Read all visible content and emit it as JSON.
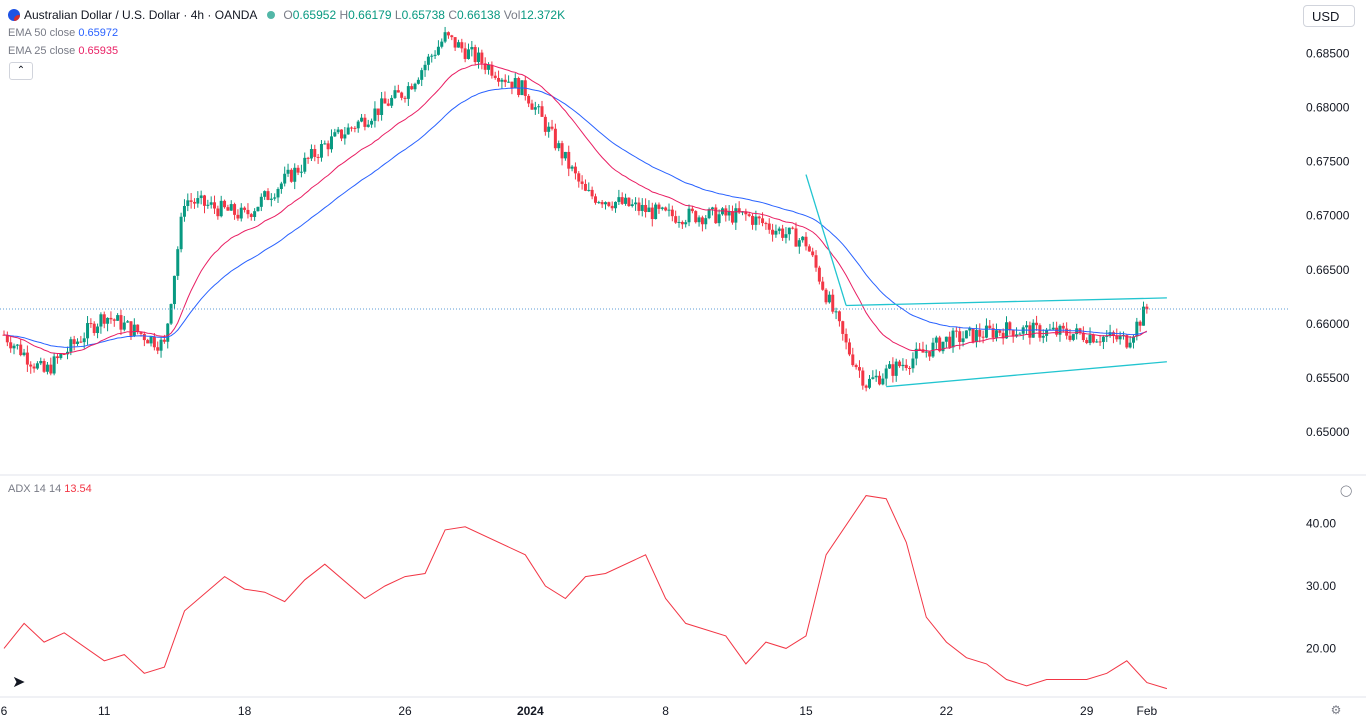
{
  "header": {
    "symbol": "Australian Dollar / U.S. Dollar · 4h · OANDA",
    "ohlc": {
      "o_label": "O",
      "o": "0.65952",
      "h_label": "H",
      "h": "0.66179",
      "l_label": "L",
      "l": "0.65738",
      "c_label": "C",
      "c": "0.66138",
      "vol_label": "Vol",
      "vol": "12.372K"
    },
    "currency": "USD",
    "collapse_icon": "chevron-up-icon"
  },
  "indicators": {
    "ema50": {
      "label": "EMA 50 close",
      "value": "0.65972",
      "color": "#2962ff"
    },
    "ema25": {
      "label": "EMA 25 close",
      "value": "0.65935",
      "color": "#e91e63"
    },
    "adx": {
      "label": "ADX 14 14",
      "value": "13.54",
      "color": "#f23645"
    }
  },
  "colors": {
    "up": "#089981",
    "down": "#f23645",
    "trendline": "#22c5d0",
    "pricing_line": "#5b9bd5"
  },
  "chart_data": [
    {
      "type": "candlestick",
      "title": "Australian Dollar / U.S. Dollar",
      "x_ticks": [
        "6",
        "11",
        "18",
        "26",
        "2024",
        "8",
        "15",
        "22",
        "29",
        "Feb"
      ],
      "y_ticks": [
        "0.68500",
        "0.68000",
        "0.67500",
        "0.67000",
        "0.66500",
        "0.66000",
        "0.65500",
        "0.65000"
      ],
      "ylim": [
        0.6465,
        0.689
      ],
      "last_price_line": 0.66138,
      "key_points": [
        {
          "x": "Dec 6",
          "price": 0.659
        },
        {
          "x": "Dec 8",
          "price": 0.6555
        },
        {
          "x": "Dec 11",
          "price": 0.6608
        },
        {
          "x": "Dec 14",
          "price": 0.658
        },
        {
          "x": "Dec 15",
          "price": 0.6715
        },
        {
          "x": "Dec 18",
          "price": 0.67
        },
        {
          "x": "Dec 22",
          "price": 0.6765
        },
        {
          "x": "Dec 26",
          "price": 0.6815
        },
        {
          "x": "Dec 28",
          "price": 0.6865
        },
        {
          "x": "Jan 1",
          "price": 0.6815
        },
        {
          "x": "Jan 4",
          "price": 0.672
        },
        {
          "x": "Jan 8",
          "price": 0.67
        },
        {
          "x": "Jan 12",
          "price": 0.67
        },
        {
          "x": "Jan 15",
          "price": 0.6675
        },
        {
          "x": "Jan 17",
          "price": 0.658
        },
        {
          "x": "Jan 18",
          "price": 0.6545
        },
        {
          "x": "Jan 19",
          "price": 0.6555
        },
        {
          "x": "Jan 22",
          "price": 0.6585
        },
        {
          "x": "Jan 25",
          "price": 0.6595
        },
        {
          "x": "Jan 29",
          "price": 0.659
        },
        {
          "x": "Jan 31",
          "price": 0.6585
        },
        {
          "x": "Feb 1",
          "price": 0.66138
        }
      ],
      "trendlines": [
        {
          "name": "channel-upper",
          "from": {
            "x": "Jan 17",
            "price": 0.6617
          },
          "to": {
            "x": "Feb 2",
            "price": 0.6624
          }
        },
        {
          "name": "channel-lower",
          "from": {
            "x": "Jan 19",
            "price": 0.6542
          },
          "to": {
            "x": "Feb 2",
            "price": 0.6565
          }
        },
        {
          "name": "falling-trendline",
          "from": {
            "x": "Jan 15",
            "price": 0.6738
          },
          "to": {
            "x": "Jan 17",
            "price": 0.6617
          }
        }
      ]
    },
    {
      "type": "line",
      "title": "ADX 14 14",
      "y_ticks": [
        "40.00",
        "30.00",
        "20.00"
      ],
      "ylim": [
        13,
        47
      ],
      "series": [
        {
          "values": [
            {
              "x": "Dec 6",
              "y": 20
            },
            {
              "x": "Dec 7",
              "y": 24
            },
            {
              "x": "Dec 8",
              "y": 21
            },
            {
              "x": "Dec 9",
              "y": 22.5
            },
            {
              "x": "Dec 11",
              "y": 18
            },
            {
              "x": "Dec 12",
              "y": 19
            },
            {
              "x": "Dec 13",
              "y": 16
            },
            {
              "x": "Dec 14",
              "y": 17
            },
            {
              "x": "Dec 15",
              "y": 26
            },
            {
              "x": "Dec 17",
              "y": 31.5
            },
            {
              "x": "Dec 18",
              "y": 29.5
            },
            {
              "x": "Dec 19",
              "y": 29
            },
            {
              "x": "Dec 20",
              "y": 27.5
            },
            {
              "x": "Dec 21",
              "y": 31
            },
            {
              "x": "Dec 22",
              "y": 33.5
            },
            {
              "x": "Dec 24",
              "y": 28
            },
            {
              "x": "Dec 25",
              "y": 30
            },
            {
              "x": "Dec 26",
              "y": 31.5
            },
            {
              "x": "Dec 27",
              "y": 32
            },
            {
              "x": "Dec 28",
              "y": 39
            },
            {
              "x": "Dec 29",
              "y": 39.5
            },
            {
              "x": "Jan 1",
              "y": 35
            },
            {
              "x": "Jan 2",
              "y": 30
            },
            {
              "x": "Jan 3",
              "y": 28
            },
            {
              "x": "Jan 4",
              "y": 31.5
            },
            {
              "x": "Jan 5",
              "y": 32
            },
            {
              "x": "Jan 7",
              "y": 35
            },
            {
              "x": "Jan 8",
              "y": 28
            },
            {
              "x": "Jan 9",
              "y": 24
            },
            {
              "x": "Jan 11",
              "y": 22
            },
            {
              "x": "Jan 12",
              "y": 17.5
            },
            {
              "x": "Jan 13",
              "y": 21
            },
            {
              "x": "Jan 14",
              "y": 20
            },
            {
              "x": "Jan 15",
              "y": 22
            },
            {
              "x": "Jan 16",
              "y": 35
            },
            {
              "x": "Jan 18",
              "y": 44.5
            },
            {
              "x": "Jan 19",
              "y": 44
            },
            {
              "x": "Jan 20",
              "y": 37
            },
            {
              "x": "Jan 21",
              "y": 25
            },
            {
              "x": "Jan 22",
              "y": 21
            },
            {
              "x": "Jan 23",
              "y": 18.5
            },
            {
              "x": "Jan 24",
              "y": 17.5
            },
            {
              "x": "Jan 25",
              "y": 15
            },
            {
              "x": "Jan 26",
              "y": 14
            },
            {
              "x": "Jan 27",
              "y": 15
            },
            {
              "x": "Jan 29",
              "y": 15
            },
            {
              "x": "Jan 30",
              "y": 16
            },
            {
              "x": "Jan 31",
              "y": 18
            },
            {
              "x": "Feb 1",
              "y": 14.5
            },
            {
              "x": "Feb 2",
              "y": 13.54
            }
          ]
        }
      ]
    }
  ]
}
